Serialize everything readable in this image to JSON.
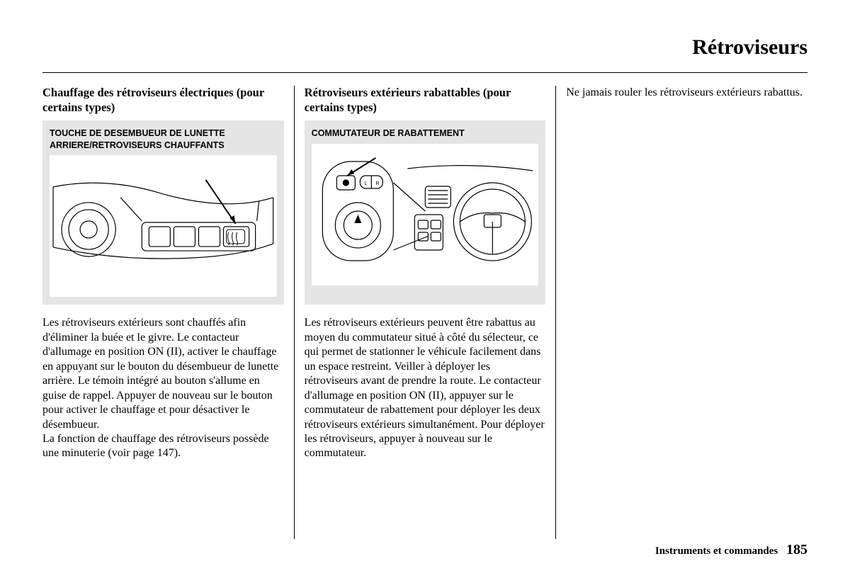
{
  "page": {
    "title": "Rétroviseurs",
    "footer_section": "Instruments et commandes",
    "page_number": "185"
  },
  "col1": {
    "heading": "Chauffage des rétroviseurs électriques (pour certains types)",
    "figure_label": "TOUCHE DE DESEMBUEUR DE LUNETTE ARRIERE/RETROVISEURS CHAUFFANTS",
    "body": "Les rétroviseurs extérieurs sont chauffés afin d'éliminer la buée et le givre. Le contacteur d'allumage en position ON (II), activer le chauffage en appuyant sur le bouton du désembueur de lunette arrière. Le témoin intégré au bouton s'allume en guise de rappel. Appuyer de nouveau sur le bouton pour activer le chauffage et pour désactiver le désembueur.\nLa fonction de chauffage des rétroviseurs possède une minuterie (voir page 147)."
  },
  "col2": {
    "heading": "Rétroviseurs extérieurs rabattables (pour certains types)",
    "figure_label": "COMMUTATEUR DE RABATTEMENT",
    "body": "Les rétroviseurs extérieurs peuvent être rabattus au moyen du commutateur situé à côté du sélecteur, ce qui permet de stationner le véhicule facilement dans un espace restreint. Veiller à déployer les rétroviseurs avant de prendre la route. Le contacteur d'allumage en position ON (II), appuyer sur le commutateur de rabattement pour déployer les deux rétroviseurs extérieurs simultanément. Pour déployer les rétroviseurs, appuyer à nouveau sur le commutateur."
  },
  "col3": {
    "body": "Ne jamais rouler les rétroviseurs extérieurs rabattus."
  },
  "colors": {
    "figure_bg": "#e5e5e5",
    "page_bg": "#ffffff",
    "text": "#000000"
  }
}
